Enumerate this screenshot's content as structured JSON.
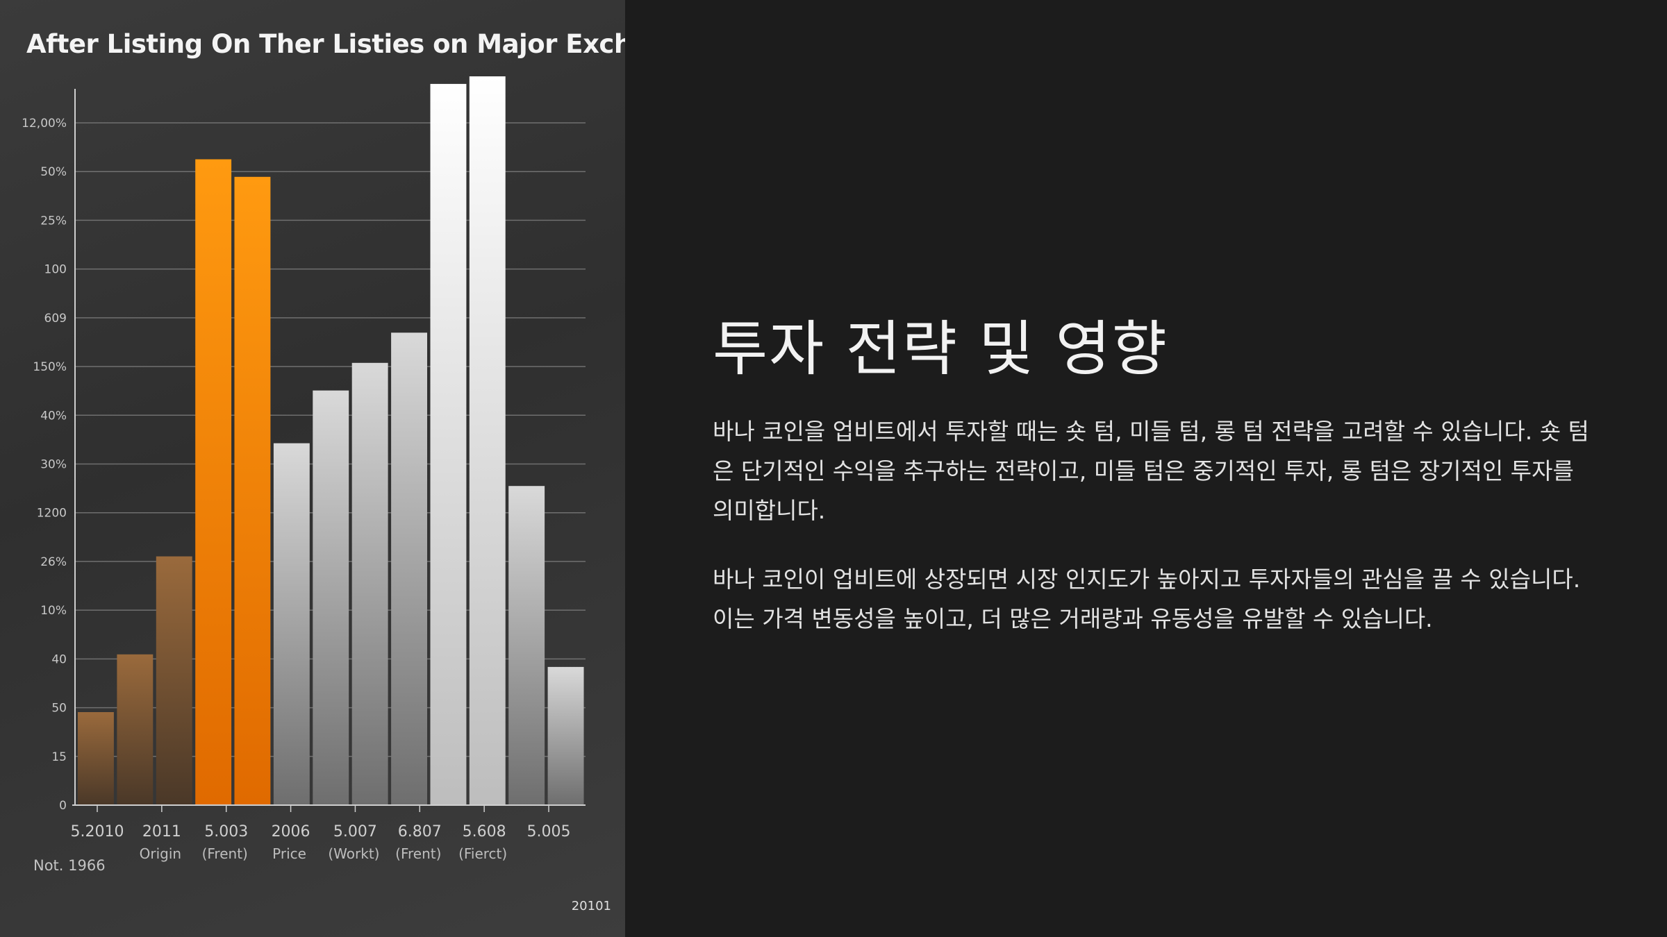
{
  "chart_data": {
    "type": "bar",
    "title": "After Listing On Ther Listies on Major Exchange",
    "y_tick_labels": [
      "12,00%",
      "50%",
      "25%",
      "100",
      "609",
      "150%",
      "40%",
      "30%",
      "1200",
      "26%",
      "10%",
      "40",
      "50",
      "15",
      "0"
    ],
    "x_tick_labels": [
      {
        "line1": "5.2010",
        "line2": ""
      },
      {
        "line1": "2011",
        "line2": "Origin"
      },
      {
        "line1": "5.003",
        "line2": "(Frent)"
      },
      {
        "line1": "2006",
        "line2": "Price"
      },
      {
        "line1": "5.007",
        "line2": "(Workt)"
      },
      {
        "line1": "6.807",
        "line2": "(Frent)"
      },
      {
        "line1": "5.608",
        "line2": "(Fierct)"
      },
      {
        "line1": "5.005",
        "line2": ""
      }
    ],
    "ylim": [
      0,
      14.5
    ],
    "grid": true,
    "bars": [
      {
        "value": 1.85,
        "color": "brown"
      },
      {
        "value": 3.0,
        "color": "brown"
      },
      {
        "value": 4.95,
        "color": "brown"
      },
      {
        "value": 12.85,
        "color": "orange"
      },
      {
        "value": 12.5,
        "color": "orange"
      },
      {
        "value": 7.2,
        "color": "silver"
      },
      {
        "value": 8.25,
        "color": "silver"
      },
      {
        "value": 8.8,
        "color": "silver"
      },
      {
        "value": 9.4,
        "color": "silver"
      },
      {
        "value": 14.35,
        "color": "white"
      },
      {
        "value": 14.5,
        "color": "white"
      },
      {
        "value": 6.35,
        "color": "silver"
      },
      {
        "value": 2.75,
        "color": "silver"
      }
    ],
    "colors": {
      "brown_top": "#9a6a3c",
      "brown_bottom": "#4a3828",
      "orange_top": "#ff9a10",
      "orange_bottom": "#e06a00",
      "silver_top": "#d9d9d9",
      "silver_bottom": "#6e6e6e",
      "white_top": "#ffffff",
      "white_bottom": "#bdbdbd"
    }
  },
  "footnote": "Not. 1966",
  "corner_code": "20101",
  "heading": "투자 전략 및 영향",
  "paragraphs": [
    "바나 코인을 업비트에서 투자할 때는 숏 텀, 미들 텀, 롱 텀 전략을 고려할 수 있습니다. 숏 텀은 단기적인 수익을 추구하는 전략이고, 미들 텀은 중기적인 투자, 롱 텀은 장기적인 투자를 의미합니다.",
    "바나 코인이 업비트에 상장되면 시장 인지도가 높아지고 투자자들의 관심을 끌 수 있습니다. 이는 가격 변동성을 높이고, 더 많은 거래량과 유동성을 유발할 수 있습니다."
  ]
}
